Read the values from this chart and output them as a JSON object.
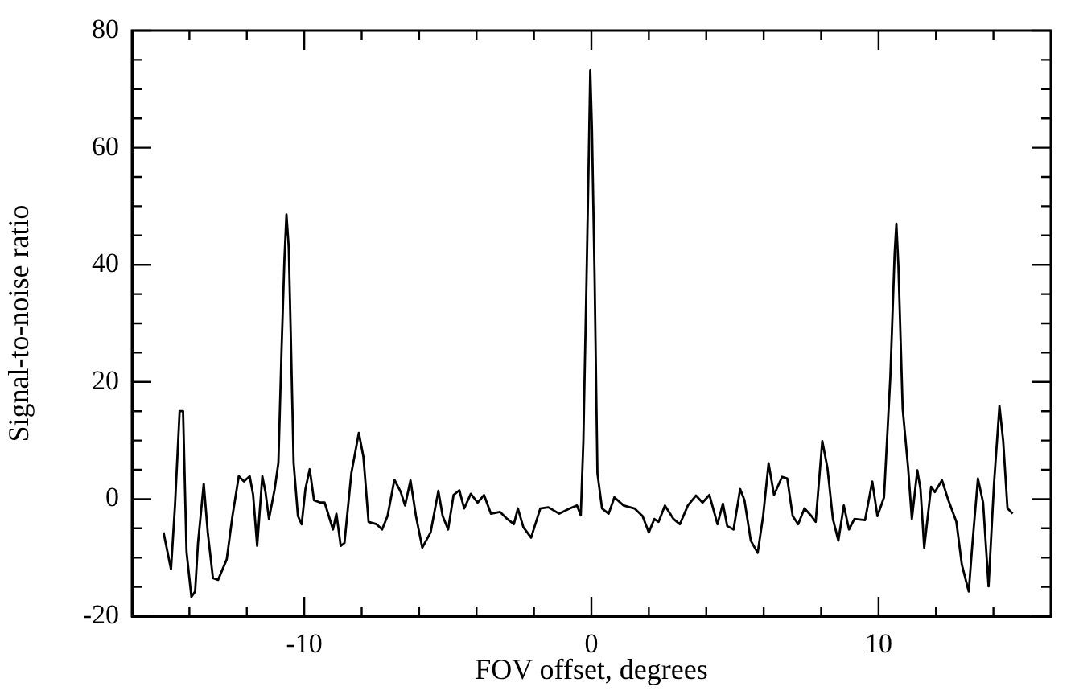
{
  "chart_data": {
    "type": "line",
    "xlabel": "FOV offset, degrees",
    "ylabel": "Signal-to-noise ratio",
    "xlim": [
      -16,
      16
    ],
    "ylim": [
      -20,
      80
    ],
    "xticks": [
      {
        "value": -14,
        "label": null
      },
      {
        "value": -12,
        "label": null
      },
      -10,
      {
        "value": -8,
        "label": null
      },
      {
        "value": -6,
        "label": null
      },
      {
        "value": -4,
        "label": null
      },
      {
        "value": -2,
        "label": null
      },
      0,
      {
        "value": 2,
        "label": null
      },
      {
        "value": 4,
        "label": null
      },
      {
        "value": 6,
        "label": null
      },
      {
        "value": 8,
        "label": null
      },
      10,
      {
        "value": 12,
        "label": null
      },
      {
        "value": 14,
        "label": null
      }
    ],
    "yticks": [
      -20,
      {
        "value": -15,
        "label": null
      },
      {
        "value": -10,
        "label": null
      },
      {
        "value": -5,
        "label": null
      },
      0,
      {
        "value": 5,
        "label": null
      },
      {
        "value": 10,
        "label": null
      },
      {
        "value": 15,
        "label": null
      },
      20,
      {
        "value": 25,
        "label": null
      },
      {
        "value": 30,
        "label": null
      },
      {
        "value": 35,
        "label": null
      },
      40,
      {
        "value": 45,
        "label": null
      },
      {
        "value": 50,
        "label": null
      },
      {
        "value": 55,
        "label": null
      },
      60,
      {
        "value": 65,
        "label": null
      },
      {
        "value": 70,
        "label": null
      },
      {
        "value": 75,
        "label": null
      },
      80
    ],
    "grid": false,
    "legend": false,
    "marker": "none",
    "line_style": "solid",
    "series": [
      {
        "color": "#000000",
        "x": [
          -14.9,
          -14.64,
          -14.5,
          -14.34,
          -14.22,
          -14.1,
          -13.93,
          -13.8,
          -13.7,
          -13.5,
          -13.36,
          -13.18,
          -13.0,
          -12.7,
          -12.5,
          -12.28,
          -12.1,
          -11.9,
          -11.78,
          -11.64,
          -11.46,
          -11.35,
          -11.23,
          -11.03,
          -10.9,
          -10.79,
          -10.69,
          -10.62,
          -10.54,
          -10.47,
          -10.37,
          -10.22,
          -10.09,
          -9.96,
          -9.81,
          -9.66,
          -9.44,
          -9.29,
          -9.0,
          -8.88,
          -8.73,
          -8.6,
          -8.36,
          -8.1,
          -7.94,
          -7.76,
          -7.48,
          -7.29,
          -7.1,
          -6.86,
          -6.64,
          -6.49,
          -6.3,
          -6.11,
          -5.89,
          -5.6,
          -5.33,
          -5.18,
          -4.99,
          -4.8,
          -4.6,
          -4.43,
          -4.2,
          -3.96,
          -3.74,
          -3.5,
          -3.18,
          -2.93,
          -2.7,
          -2.56,
          -2.37,
          -2.1,
          -1.78,
          -1.5,
          -1.12,
          -0.75,
          -0.5,
          -0.37,
          -0.28,
          -0.17,
          -0.09,
          -0.04,
          0.02,
          0.11,
          0.21,
          0.37,
          0.6,
          0.8,
          1.12,
          1.5,
          1.78,
          2.0,
          2.19,
          2.34,
          2.56,
          2.86,
          3.08,
          3.36,
          3.64,
          3.87,
          4.11,
          4.39,
          4.58,
          4.73,
          4.95,
          5.18,
          5.33,
          5.55,
          5.79,
          5.98,
          6.17,
          6.36,
          6.64,
          6.82,
          7.01,
          7.2,
          7.42,
          7.66,
          7.81,
          8.04,
          8.22,
          8.41,
          8.6,
          8.79,
          8.97,
          9.16,
          9.53,
          9.78,
          9.96,
          10.19,
          10.41,
          10.56,
          10.62,
          10.69,
          10.84,
          11.03,
          11.16,
          11.35,
          11.46,
          11.59,
          11.83,
          11.96,
          12.21,
          12.43,
          12.71,
          12.9,
          13.14,
          13.27,
          13.46,
          13.64,
          13.83,
          14.02,
          14.21,
          14.34,
          14.49,
          14.67
        ],
        "values": [
          -5.7,
          -12,
          -1,
          15,
          15,
          -9,
          -16.7,
          -15.8,
          -7.5,
          2.6,
          -5.7,
          -13.5,
          -13.8,
          -10.3,
          -2.9,
          3.9,
          3,
          3.9,
          0.7,
          -8,
          3.9,
          1.2,
          -3.4,
          1.7,
          6.2,
          25.5,
          41,
          48.6,
          43,
          28.3,
          6.2,
          -2.9,
          -4.3,
          1.7,
          5.1,
          -0.2,
          -0.6,
          -0.6,
          -5.2,
          -2.5,
          -8,
          -7.5,
          4.4,
          11.3,
          7.2,
          -3.9,
          -4.3,
          -5.2,
          -2.9,
          3.3,
          1.2,
          -1.1,
          3.2,
          -2.9,
          -8.3,
          -5.7,
          1.4,
          -2.9,
          -5.2,
          0.7,
          1.5,
          -1.6,
          0.9,
          -0.6,
          0.7,
          -2.5,
          -2.2,
          -3.4,
          -4.3,
          -1.6,
          -4.8,
          -6.6,
          -1.6,
          -1.4,
          -2.5,
          -1.6,
          -1.1,
          -2.8,
          9.9,
          37.4,
          59,
          73.2,
          63,
          38.3,
          4.4,
          -1.6,
          -2.5,
          0.3,
          -1.1,
          -1.6,
          -2.9,
          -5.7,
          -3.4,
          -3.9,
          -1.1,
          -3.4,
          -4.3,
          -1.1,
          0.6,
          -0.6,
          0.7,
          -4.3,
          -0.8,
          -4.6,
          -5.2,
          1.7,
          -0.2,
          -7.1,
          -9.2,
          -2.9,
          6.1,
          0.7,
          3.8,
          3.5,
          -2.9,
          -4.3,
          -1.6,
          -2.9,
          -3.9,
          9.9,
          5.3,
          -3.4,
          -7.1,
          -1.1,
          -5.2,
          -3.4,
          -3.6,
          3,
          -2.9,
          0.3,
          20.9,
          42,
          47,
          40,
          15.4,
          5.3,
          -3.4,
          4.9,
          1.7,
          -8.3,
          2.1,
          1.2,
          3.2,
          -0.2,
          -3.9,
          -11.2,
          -15.8,
          -7.5,
          3.5,
          -0.6,
          -14.9,
          2.6,
          15.9,
          9.9,
          -1.6,
          -2.5
        ]
      }
    ]
  }
}
